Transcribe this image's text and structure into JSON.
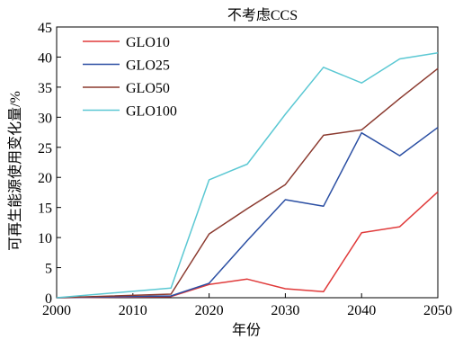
{
  "chart_data": {
    "type": "line",
    "title": "不考虑CCS",
    "xlabel": "年份",
    "ylabel": "可再生能源使用变化量/%",
    "xlim": [
      2000,
      2050
    ],
    "ylim": [
      0,
      45
    ],
    "x_ticks": [
      2000,
      2010,
      2020,
      2030,
      2040,
      2050
    ],
    "y_ticks": [
      0,
      5,
      10,
      15,
      20,
      25,
      30,
      35,
      40,
      45
    ],
    "grid": false,
    "legend_position": "top-left",
    "series": [
      {
        "name": "GLO10",
        "color": "#e03a3a",
        "points": [
          [
            2000,
            0
          ],
          [
            2015,
            0.2
          ],
          [
            2020,
            2.2
          ],
          [
            2025,
            3.1
          ],
          [
            2030,
            1.5
          ],
          [
            2035,
            1.0
          ],
          [
            2040,
            10.8
          ],
          [
            2045,
            11.8
          ],
          [
            2050,
            17.6
          ]
        ]
      },
      {
        "name": "GLO25",
        "color": "#2b4fa3",
        "points": [
          [
            2000,
            0
          ],
          [
            2015,
            0.3
          ],
          [
            2020,
            2.4
          ],
          [
            2025,
            9.5
          ],
          [
            2030,
            16.3
          ],
          [
            2035,
            15.2
          ],
          [
            2040,
            27.4
          ],
          [
            2045,
            23.6
          ],
          [
            2050,
            28.3
          ]
        ]
      },
      {
        "name": "GLO50",
        "color": "#8b3a2f",
        "points": [
          [
            2000,
            0
          ],
          [
            2015,
            0.6
          ],
          [
            2020,
            10.6
          ],
          [
            2025,
            14.8
          ],
          [
            2030,
            18.8
          ],
          [
            2035,
            27.0
          ],
          [
            2040,
            27.9
          ],
          [
            2045,
            33.1
          ],
          [
            2050,
            38.1
          ]
        ]
      },
      {
        "name": "GLO100",
        "color": "#5bc8d3",
        "points": [
          [
            2000,
            0
          ],
          [
            2015,
            1.6
          ],
          [
            2020,
            19.6
          ],
          [
            2025,
            22.2
          ],
          [
            2030,
            30.5
          ],
          [
            2035,
            38.3
          ],
          [
            2040,
            35.7
          ],
          [
            2045,
            39.7
          ],
          [
            2050,
            40.7
          ]
        ]
      }
    ]
  }
}
